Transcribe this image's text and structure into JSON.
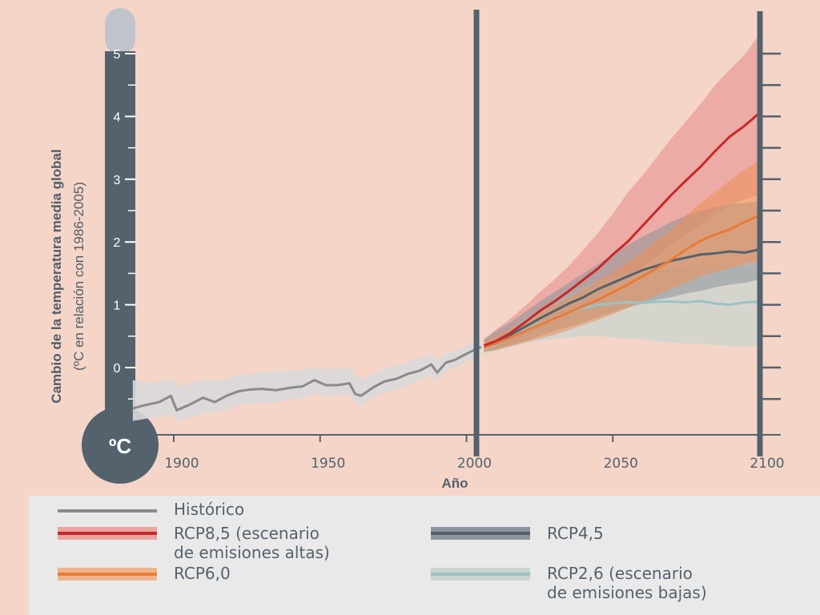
{
  "colors": {
    "background": "#f5d5c8",
    "axis": "#54626d",
    "historico": "#8a8a8a",
    "historico_band": "#d9d9d9",
    "rcp85": "#c8282a",
    "rcp85_band": "#eaa39f",
    "rcp60": "#ec7a34",
    "rcp60_band": "#ee9058",
    "rcp45": "#54626d",
    "rcp45_band": "#8d939a",
    "rcp26": "#9ac3c5",
    "rcp26_band": "#c9d4d0",
    "legend_bg": "#e9e9ea"
  },
  "chart_data": {
    "type": "line",
    "xlabel": "Año",
    "ylabel": "Cambio de la temperatura media global",
    "ylabel_sub": "(ºC en relación con 1986-2005)",
    "unit_label": "ºC",
    "xlim": [
      1886,
      2104
    ],
    "ylim": [
      -1.0,
      5.5
    ],
    "x_ticks": [
      1900,
      1950,
      2000,
      2050,
      2100
    ],
    "y_ticks": [
      0,
      1,
      2,
      3,
      4,
      5
    ],
    "legend_position": "bottom",
    "series": [
      {
        "name": "Histórico",
        "key": "historico",
        "x": [
          1886,
          1890,
          1895,
          1899,
          1901,
          1905,
          1910,
          1914,
          1918,
          1922,
          1926,
          1930,
          1935,
          1940,
          1944,
          1948,
          1952,
          1956,
          1960,
          1962,
          1964,
          1968,
          1972,
          1976,
          1980,
          1984,
          1988,
          1990,
          1993,
          1996,
          2000,
          2005
        ],
        "y": [
          -0.65,
          -0.6,
          -0.55,
          -0.45,
          -0.68,
          -0.6,
          -0.48,
          -0.55,
          -0.45,
          -0.38,
          -0.35,
          -0.34,
          -0.36,
          -0.32,
          -0.3,
          -0.2,
          -0.28,
          -0.28,
          -0.25,
          -0.42,
          -0.45,
          -0.32,
          -0.22,
          -0.18,
          -0.1,
          -0.05,
          0.05,
          -0.08,
          0.08,
          0.12,
          0.22,
          0.33
        ],
        "band_low": [
          -0.85,
          -0.82,
          -0.78,
          -0.75,
          -0.85,
          -0.8,
          -0.72,
          -0.72,
          -0.68,
          -0.6,
          -0.58,
          -0.56,
          -0.55,
          -0.5,
          -0.48,
          -0.42,
          -0.45,
          -0.45,
          -0.42,
          -0.55,
          -0.6,
          -0.48,
          -0.4,
          -0.36,
          -0.28,
          -0.2,
          -0.12,
          -0.2,
          -0.05,
          0.0,
          0.1,
          0.2
        ],
        "band_high": [
          -0.2,
          -0.25,
          -0.22,
          -0.18,
          -0.3,
          -0.25,
          -0.2,
          -0.2,
          -0.18,
          -0.12,
          -0.1,
          -0.08,
          -0.06,
          -0.05,
          -0.04,
          0.0,
          -0.02,
          -0.02,
          0.0,
          -0.12,
          -0.2,
          -0.1,
          -0.02,
          0.02,
          0.1,
          0.15,
          0.22,
          0.12,
          0.22,
          0.26,
          0.35,
          0.45
        ]
      },
      {
        "name": "RCP8,5 (escenario de emisiones altas)",
        "legend_lines": [
          "RCP8,5 (escenario",
          "de emisiones altas)"
        ],
        "key": "rcp85",
        "x": [
          2006,
          2010,
          2015,
          2020,
          2025,
          2030,
          2035,
          2040,
          2045,
          2050,
          2055,
          2060,
          2065,
          2070,
          2075,
          2080,
          2085,
          2090,
          2095,
          2100
        ],
        "y": [
          0.35,
          0.42,
          0.55,
          0.72,
          0.9,
          1.05,
          1.22,
          1.4,
          1.58,
          1.8,
          2.0,
          2.25,
          2.5,
          2.75,
          2.98,
          3.2,
          3.45,
          3.68,
          3.85,
          4.05
        ],
        "band_low": [
          0.25,
          0.3,
          0.38,
          0.5,
          0.6,
          0.72,
          0.85,
          0.98,
          1.12,
          1.3,
          1.45,
          1.6,
          1.78,
          1.95,
          2.12,
          2.28,
          2.45,
          2.58,
          2.68,
          2.75
        ],
        "band_high": [
          0.45,
          0.6,
          0.78,
          0.98,
          1.2,
          1.4,
          1.62,
          1.88,
          2.15,
          2.45,
          2.78,
          3.05,
          3.35,
          3.65,
          3.92,
          4.2,
          4.5,
          4.75,
          4.98,
          5.3
        ]
      },
      {
        "name": "RCP4,5",
        "legend_lines": [
          "RCP4,5"
        ],
        "key": "rcp45",
        "x": [
          2006,
          2010,
          2015,
          2020,
          2025,
          2030,
          2035,
          2040,
          2045,
          2050,
          2055,
          2060,
          2065,
          2070,
          2075,
          2080,
          2085,
          2090,
          2095,
          2100
        ],
        "y": [
          0.35,
          0.4,
          0.52,
          0.65,
          0.78,
          0.9,
          1.02,
          1.12,
          1.25,
          1.35,
          1.45,
          1.55,
          1.62,
          1.7,
          1.75,
          1.8,
          1.82,
          1.85,
          1.83,
          1.88
        ],
        "band_low": [
          0.25,
          0.28,
          0.35,
          0.42,
          0.5,
          0.58,
          0.65,
          0.72,
          0.8,
          0.88,
          0.95,
          1.02,
          1.08,
          1.12,
          1.18,
          1.22,
          1.28,
          1.32,
          1.35,
          1.4
        ],
        "band_high": [
          0.45,
          0.58,
          0.72,
          0.88,
          1.05,
          1.2,
          1.35,
          1.5,
          1.65,
          1.8,
          1.95,
          2.08,
          2.2,
          2.32,
          2.42,
          2.5,
          2.55,
          2.6,
          2.62,
          2.65
        ]
      },
      {
        "name": "RCP6,0",
        "legend_lines": [
          "RCP6,0"
        ],
        "key": "rcp60",
        "x": [
          2006,
          2010,
          2015,
          2020,
          2025,
          2030,
          2035,
          2040,
          2045,
          2050,
          2055,
          2060,
          2065,
          2070,
          2075,
          2080,
          2085,
          2090,
          2095,
          2100
        ],
        "y": [
          0.32,
          0.38,
          0.48,
          0.58,
          0.68,
          0.78,
          0.88,
          0.98,
          1.08,
          1.2,
          1.32,
          1.45,
          1.58,
          1.72,
          1.88,
          2.02,
          2.12,
          2.2,
          2.32,
          2.42
        ],
        "band_low": [
          0.25,
          0.28,
          0.34,
          0.4,
          0.46,
          0.52,
          0.6,
          0.68,
          0.76,
          0.85,
          0.95,
          1.05,
          1.15,
          1.25,
          1.35,
          1.45,
          1.52,
          1.58,
          1.65,
          1.7
        ],
        "band_high": [
          0.42,
          0.5,
          0.62,
          0.75,
          0.88,
          1.0,
          1.12,
          1.25,
          1.38,
          1.52,
          1.68,
          1.85,
          2.02,
          2.2,
          2.42,
          2.62,
          2.8,
          2.98,
          3.15,
          3.3
        ]
      },
      {
        "name": "RCP2,6 (escenario de emisiones bajas)",
        "legend_lines": [
          "RCP2,6 (escenario",
          "de emisiones bajas)"
        ],
        "key": "rcp26",
        "x": [
          2006,
          2010,
          2015,
          2020,
          2025,
          2030,
          2035,
          2040,
          2045,
          2050,
          2055,
          2060,
          2065,
          2070,
          2075,
          2080,
          2085,
          2090,
          2095,
          2100
        ],
        "y": [
          0.3,
          0.36,
          0.48,
          0.6,
          0.7,
          0.78,
          0.88,
          0.95,
          1.0,
          1.02,
          1.04,
          1.03,
          1.05,
          1.05,
          1.04,
          1.06,
          1.02,
          1.0,
          1.04,
          1.05
        ],
        "band_low": [
          0.22,
          0.26,
          0.32,
          0.38,
          0.42,
          0.46,
          0.48,
          0.5,
          0.5,
          0.48,
          0.46,
          0.45,
          0.42,
          0.4,
          0.38,
          0.38,
          0.36,
          0.34,
          0.33,
          0.34
        ],
        "band_high": [
          0.4,
          0.48,
          0.62,
          0.78,
          0.92,
          1.05,
          1.18,
          1.28,
          1.38,
          1.45,
          1.5,
          1.52,
          1.55,
          1.58,
          1.6,
          1.62,
          1.62,
          1.62,
          1.62,
          1.62
        ]
      }
    ]
  }
}
